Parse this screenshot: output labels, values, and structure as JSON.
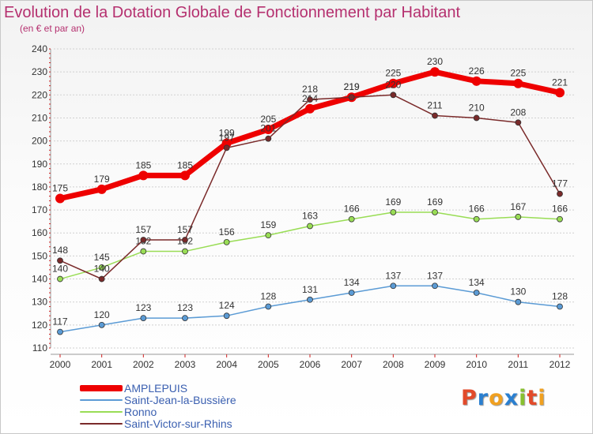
{
  "title": "Evolution de la Dotation Globale de Fonctionnement par Habitant",
  "subtitle": "(en € et par an)",
  "brand": {
    "text": "Proxiti"
  },
  "chart_data": {
    "type": "line",
    "title": "Evolution de la Dotation Globale de Fonctionnement par Habitant",
    "subtitle": "(en € et par an)",
    "xlabel": "",
    "ylabel": "",
    "x": [
      "2000",
      "2001",
      "2002",
      "2003",
      "2004",
      "2005",
      "2006",
      "2007",
      "2008",
      "2009",
      "2010",
      "2011",
      "2012"
    ],
    "ylim": [
      110,
      240
    ],
    "yticks": [
      110,
      120,
      130,
      140,
      150,
      160,
      170,
      180,
      190,
      200,
      210,
      220,
      230,
      240
    ],
    "grid": "horizontal dashed",
    "legend_position": "bottom-left",
    "series": [
      {
        "name": "AMPLEPUIS",
        "color": "#ee0000",
        "values": [
          175,
          179,
          185,
          185,
          199,
          205,
          214,
          219,
          225,
          230,
          226,
          225,
          221
        ]
      },
      {
        "name": "Saint-Jean-la-Bussière",
        "color": "#5b9bd5",
        "values": [
          117,
          120,
          123,
          123,
          124,
          128,
          131,
          134,
          137,
          137,
          134,
          130,
          128
        ]
      },
      {
        "name": "Ronno",
        "color": "#99dd55",
        "values": [
          140,
          145,
          152,
          152,
          156,
          159,
          163,
          166,
          169,
          169,
          166,
          167,
          166
        ]
      },
      {
        "name": "Saint-Victor-sur-Rhins",
        "color": "#7a2a2a",
        "values": [
          148,
          140,
          157,
          157,
          197,
          201,
          218,
          219,
          220,
          211,
          210,
          208,
          177
        ]
      }
    ]
  }
}
